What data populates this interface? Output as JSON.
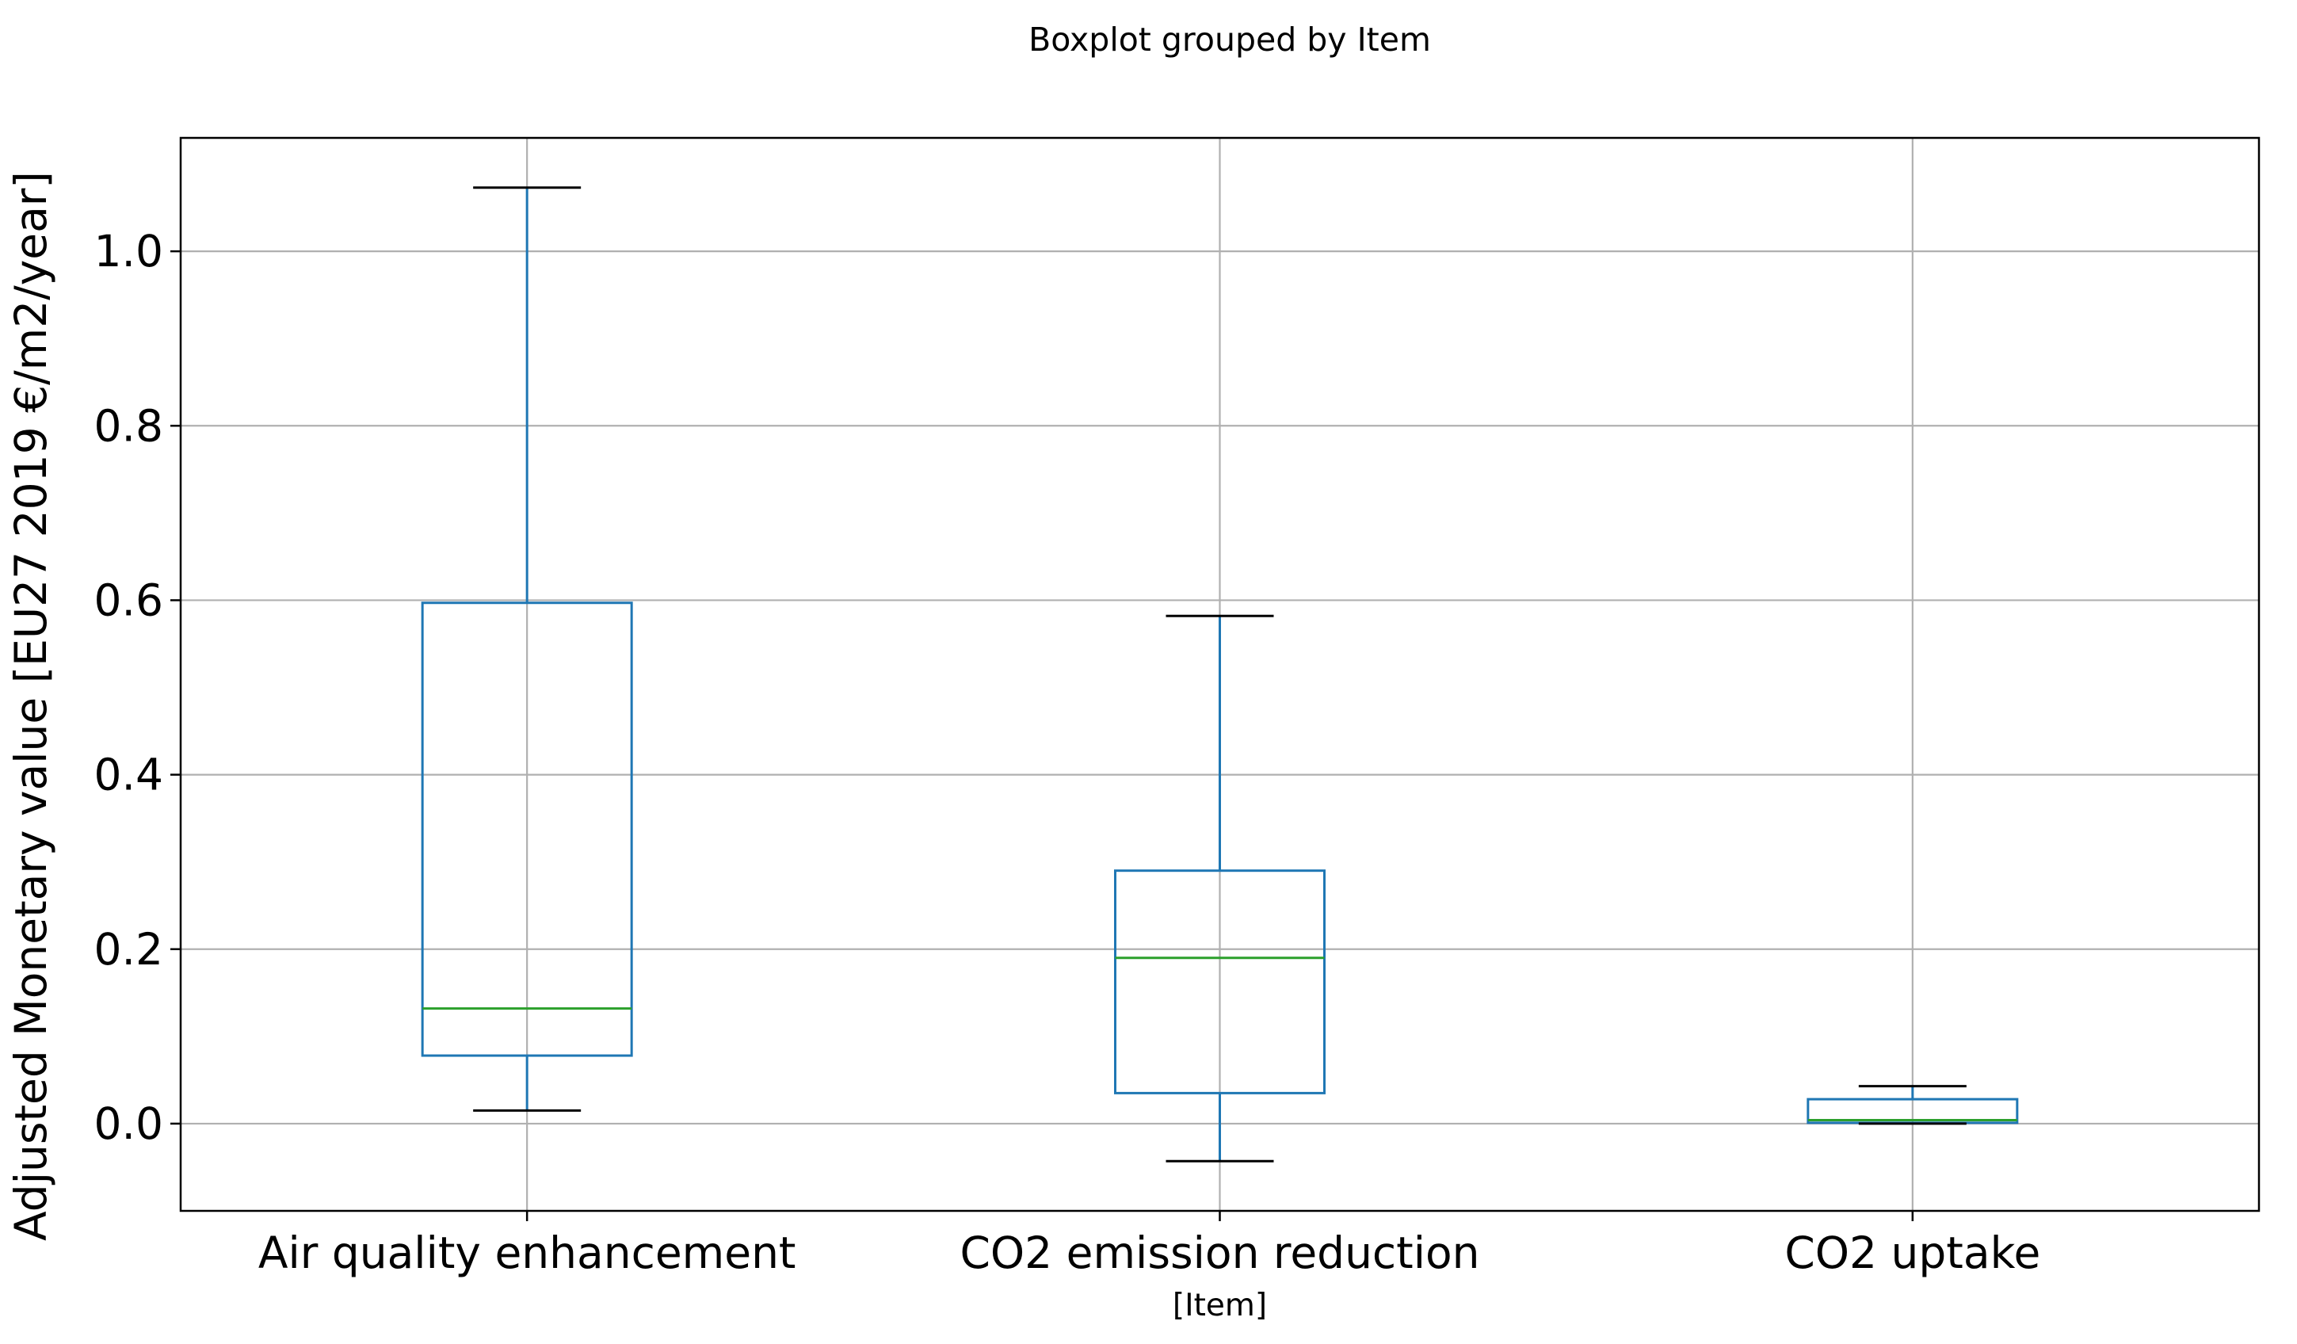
{
  "chart_data": {
    "type": "boxplot",
    "title": "Boxplot grouped by Item",
    "xlabel": "[Item]",
    "ylabel": "Adjusted Monetary value [EU27 2019 €/m2/year]",
    "categories": [
      "Air quality enhancement",
      "CO2 emission reduction",
      "CO2 uptake"
    ],
    "boxes": [
      {
        "whisker_low": 0.015,
        "q1": 0.078,
        "median": 0.132,
        "q3": 0.597,
        "whisker_high": 1.073
      },
      {
        "whisker_low": -0.043,
        "q1": 0.035,
        "median": 0.19,
        "q3": 0.29,
        "whisker_high": 0.582
      },
      {
        "whisker_low": 0.0,
        "q1": 0.001,
        "median": 0.004,
        "q3": 0.028,
        "whisker_high": 0.043
      }
    ],
    "ylim": [
      -0.1,
      1.13
    ],
    "yticks": [
      0.0,
      0.2,
      0.4,
      0.6,
      0.8,
      1.0
    ],
    "ytick_labels": [
      "0.0",
      "0.2",
      "0.4",
      "0.6",
      "0.8",
      "1.0"
    ],
    "grid": true,
    "colors": {
      "box": "#1f77b4",
      "median": "#2ca02c",
      "cap": "#000000",
      "grid": "#b0b0b0"
    }
  }
}
